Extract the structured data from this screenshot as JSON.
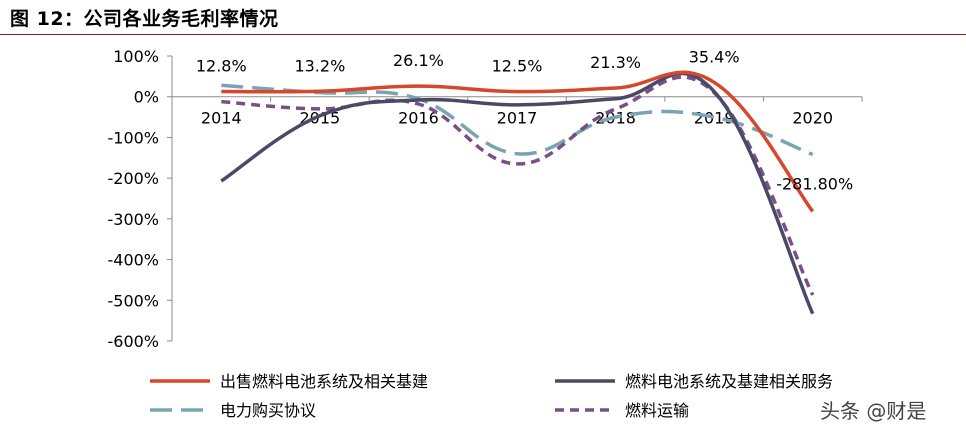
{
  "title": "图 12：公司各业务毛利率情况",
  "watermark": "头条 @财是",
  "chart_data": {
    "type": "line",
    "title": "",
    "xlabel": "",
    "ylabel": "",
    "x": [
      "2014",
      "2015",
      "2016",
      "2017",
      "2018",
      "2019",
      "2020"
    ],
    "ylim": [
      -600,
      100
    ],
    "yticks": [
      100,
      0,
      -100,
      -200,
      -300,
      -400,
      -500,
      -600
    ],
    "ytick_labels": [
      "100%",
      "0%",
      "-100%",
      "-200%",
      "-300%",
      "-400%",
      "-500%",
      "-600%"
    ],
    "grid": false,
    "legend_position": "bottom",
    "series": [
      {
        "name": "出售燃料电池系统及相关基建",
        "values": [
          12.8,
          13.2,
          26.1,
          12.5,
          21.3,
          35.4,
          -281.8
        ],
        "color": "#d9472b",
        "dash": "solid"
      },
      {
        "name": "燃料电池系统及基建相关服务",
        "values": [
          -207,
          -47,
          -8,
          -20,
          -5,
          13,
          -533
        ],
        "color": "#4a4a66",
        "dash": "solid"
      },
      {
        "name": "电力购买协议",
        "values": [
          28,
          10,
          -5,
          -140,
          -50,
          -50,
          -142
        ],
        "color": "#7aa3b3",
        "dash": "longdash"
      },
      {
        "name": "燃料运输",
        "values": [
          -12,
          -30,
          -18,
          -165,
          -30,
          10,
          -487
        ],
        "color": "#7a4f86",
        "dash": "dash"
      }
    ],
    "data_labels": [
      "12.8%",
      "13.2%",
      "26.1%",
      "12.5%",
      "21.3%",
      "35.4%",
      "-281.80%"
    ]
  }
}
